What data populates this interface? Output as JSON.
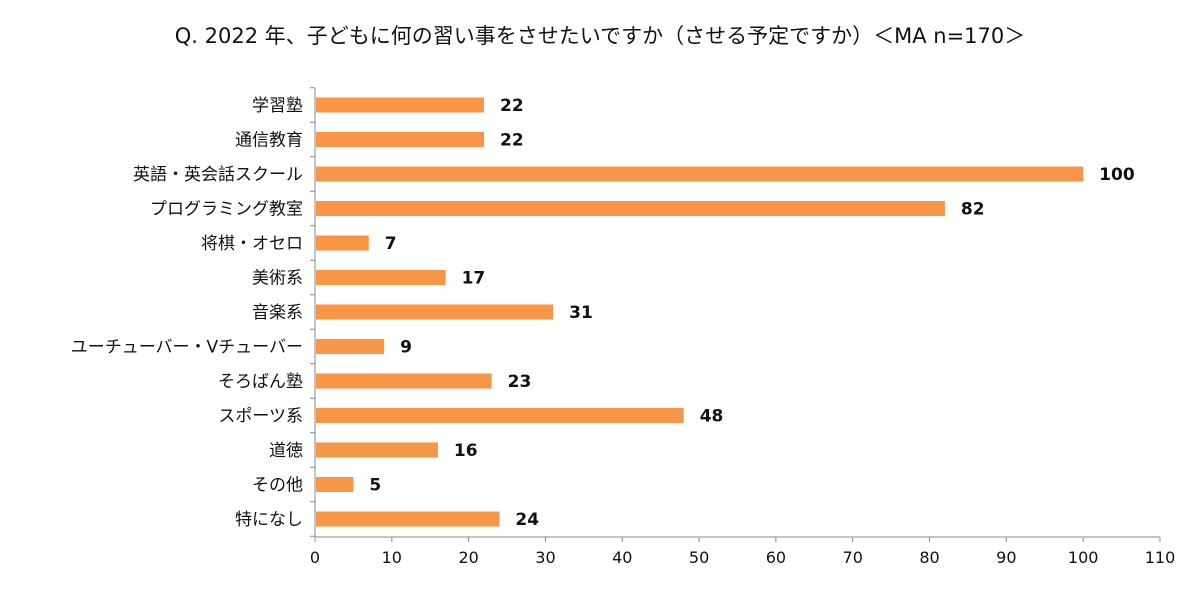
{
  "chart_data": {
    "type": "bar",
    "orientation": "horizontal",
    "title": "Q. 2022 年、子どもに何の習い事をさせたいですか（させる予定ですか）＜MA n=170＞",
    "categories": [
      "学習塾",
      "通信教育",
      "英語・英会話スクール",
      "プログラミング教室",
      "将棋・オセロ",
      "美術系",
      "音楽系",
      "ユーチューバー・Vチューバー",
      "そろばん塾",
      "スポーツ系",
      "道徳",
      "その他",
      "特になし"
    ],
    "values": [
      22,
      22,
      100,
      82,
      7,
      17,
      31,
      9,
      23,
      48,
      16,
      5,
      24
    ],
    "xlim": [
      0,
      110
    ],
    "xticks": [
      0,
      10,
      20,
      30,
      40,
      50,
      60,
      70,
      80,
      90,
      100,
      110
    ],
    "bar_color": "#F79646",
    "grid": false,
    "legend": "none"
  }
}
